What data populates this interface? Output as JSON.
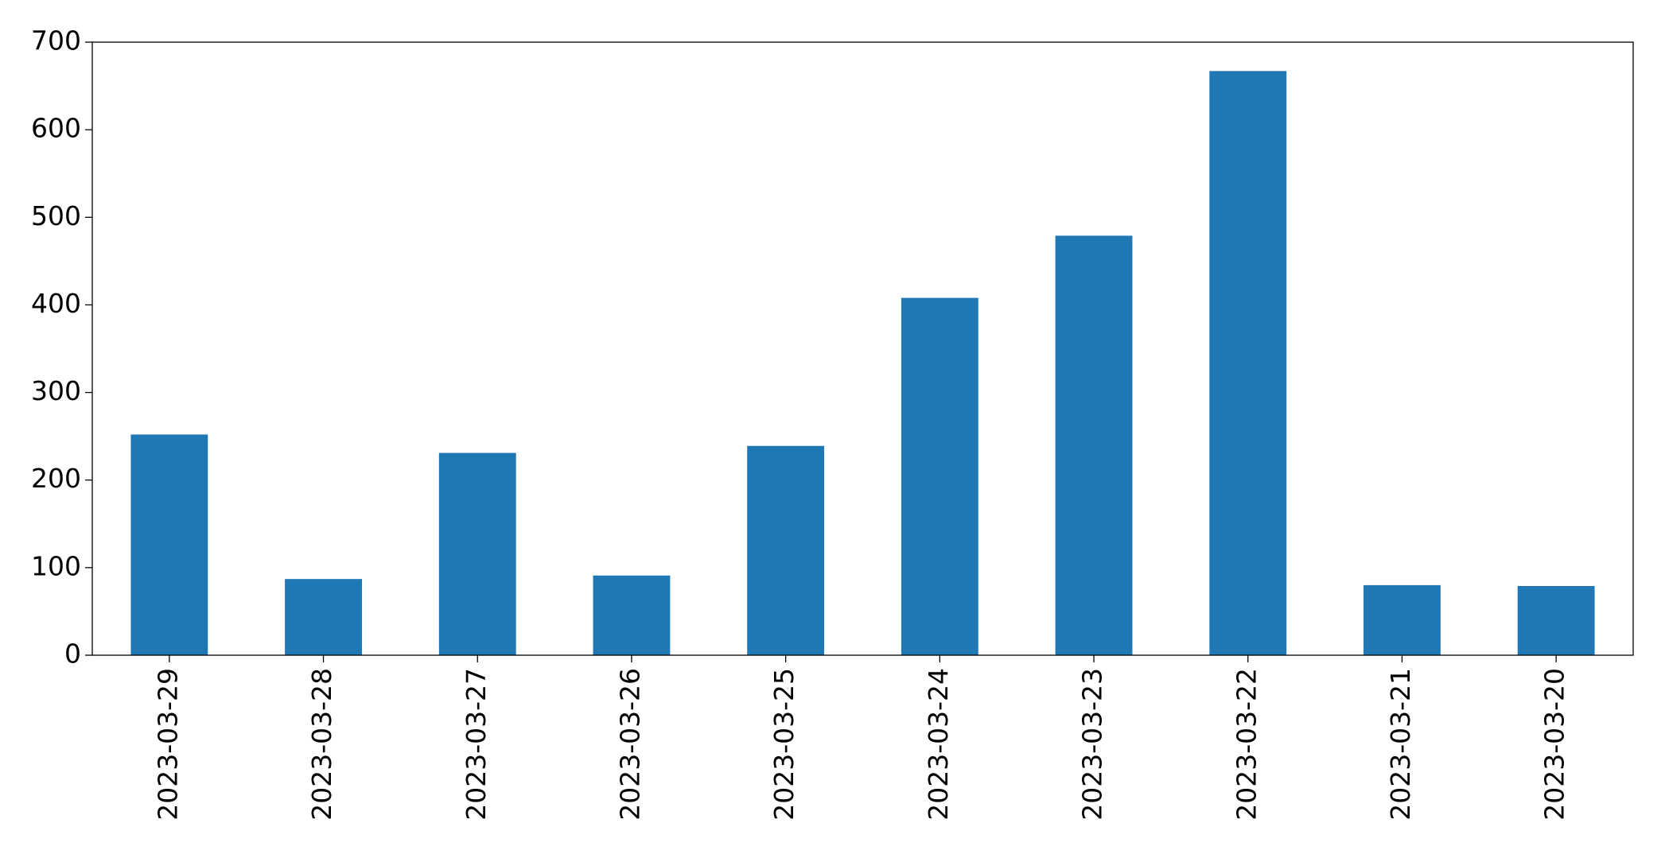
{
  "chart_data": {
    "type": "bar",
    "categories": [
      "2023-03-29",
      "2023-03-28",
      "2023-03-27",
      "2023-03-26",
      "2023-03-25",
      "2023-03-24",
      "2023-03-23",
      "2023-03-22",
      "2023-03-21",
      "2023-03-20"
    ],
    "values": [
      252,
      87,
      231,
      91,
      239,
      408,
      479,
      667,
      80,
      79
    ],
    "color": "#1f77b4",
    "ylim": [
      0,
      700
    ],
    "yticks": [
      0,
      100,
      200,
      300,
      400,
      500,
      600,
      700
    ],
    "grid": false
  }
}
